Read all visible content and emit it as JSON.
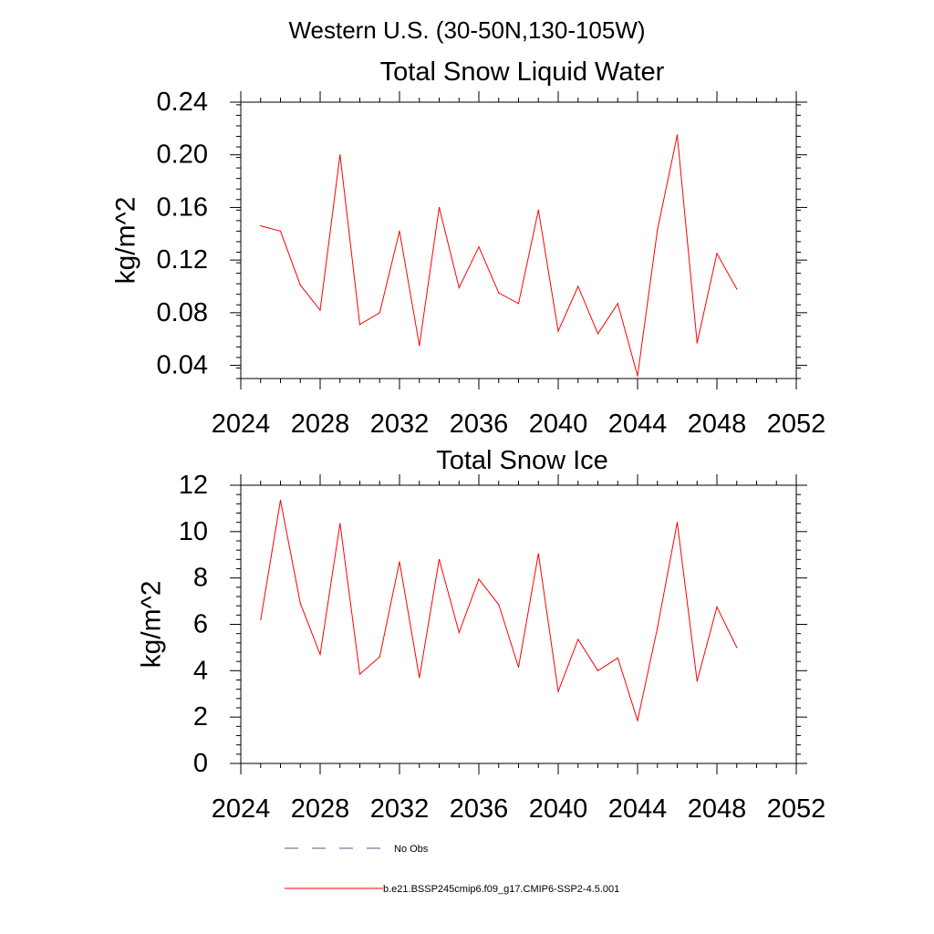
{
  "figure_title": "Western U.S. (30-50N,130-105W)",
  "legend": [
    {
      "label": "No Obs",
      "color": "#5a5a8a",
      "dash": true
    },
    {
      "label": "b.e21.BSSP245cmip6.f09_g17.CMIP6-SSP2-4.5.001",
      "color": "#ff0000",
      "dash": false
    }
  ],
  "chart_data": [
    {
      "type": "line",
      "title": "Total Snow Liquid Water",
      "xlabel": "",
      "ylabel": "kg/m^2",
      "xlim": [
        2024,
        2052
      ],
      "ylim": [
        0.03,
        0.24
      ],
      "xticks": [
        2024,
        2028,
        2032,
        2036,
        2040,
        2044,
        2048,
        2052
      ],
      "xtick_labels": [
        "2024",
        "2028",
        "2032",
        "2036",
        "2040",
        "2044",
        "2048",
        "2052"
      ],
      "yticks": [
        0.04,
        0.08,
        0.12,
        0.16,
        0.2,
        0.24
      ],
      "ytick_labels": [
        "0.04",
        "0.08",
        "0.12",
        "0.16",
        "0.20",
        "0.24"
      ],
      "grid": false,
      "series": [
        {
          "color": "#ff0000",
          "x": [
            2025,
            2026,
            2027,
            2028,
            2029,
            2030,
            2031,
            2032,
            2033,
            2034,
            2035,
            2036,
            2037,
            2038,
            2039,
            2040,
            2041,
            2042,
            2043,
            2044,
            2045,
            2046,
            2047,
            2048,
            2049
          ],
          "values": [
            0.146,
            0.142,
            0.101,
            0.082,
            0.2,
            0.071,
            0.08,
            0.142,
            0.055,
            0.16,
            0.099,
            0.13,
            0.095,
            0.087,
            0.158,
            0.066,
            0.1,
            0.064,
            0.087,
            0.032,
            0.143,
            0.215,
            0.057,
            0.125,
            0.098
          ]
        }
      ]
    },
    {
      "type": "line",
      "title": "Total Snow Ice",
      "xlabel": "",
      "ylabel": "kg/m^2",
      "xlim": [
        2024,
        2052
      ],
      "ylim": [
        0,
        12
      ],
      "xticks": [
        2024,
        2028,
        2032,
        2036,
        2040,
        2044,
        2048,
        2052
      ],
      "xtick_labels": [
        "2024",
        "2028",
        "2032",
        "2036",
        "2040",
        "2044",
        "2048",
        "2052"
      ],
      "yticks": [
        0,
        2,
        4,
        6,
        8,
        10,
        12
      ],
      "ytick_labels": [
        "0",
        "2",
        "4",
        "6",
        "8",
        "10",
        "12"
      ],
      "grid": false,
      "series": [
        {
          "color": "#ff0000",
          "x": [
            2025,
            2026,
            2027,
            2028,
            2029,
            2030,
            2031,
            2032,
            2033,
            2034,
            2035,
            2036,
            2037,
            2038,
            2039,
            2040,
            2041,
            2042,
            2043,
            2044,
            2045,
            2046,
            2047,
            2048,
            2049
          ],
          "values": [
            6.2,
            11.35,
            6.9,
            4.7,
            10.35,
            3.85,
            4.6,
            8.7,
            3.7,
            8.8,
            5.65,
            7.95,
            6.85,
            4.15,
            9.05,
            3.1,
            5.35,
            4.0,
            4.55,
            1.85,
            5.85,
            10.4,
            3.55,
            6.75,
            5.0
          ]
        }
      ]
    }
  ]
}
